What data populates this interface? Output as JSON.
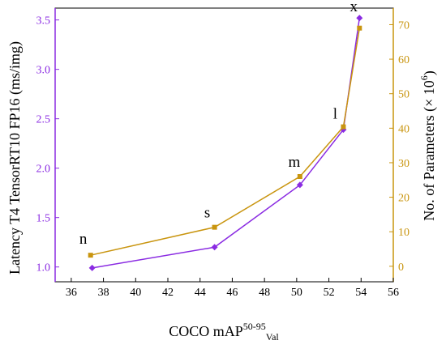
{
  "chart_data": {
    "type": "line",
    "title": "",
    "xlabel": {
      "base": "COCO mAP",
      "sup": "50-95",
      "sub": "Val"
    },
    "ylabel_left": "Latency T4 TensorRT10 FP16 (ms/img)",
    "ylabel_right": {
      "base": "No. of Parameters (× 10",
      "sup": "6",
      "end": ")"
    },
    "xlim": [
      35,
      56
    ],
    "ylim_left": [
      0.85,
      3.62
    ],
    "ylim_right": [
      -4.5,
      74.8
    ],
    "x_ticks": [
      36,
      38,
      40,
      42,
      44,
      46,
      48,
      50,
      52,
      54,
      56
    ],
    "y_left_ticks": [
      1.0,
      1.5,
      2.0,
      2.5,
      3.0,
      3.5
    ],
    "y_right_ticks": [
      0,
      10,
      20,
      30,
      40,
      50,
      60,
      70
    ],
    "grid": false,
    "point_labels": [
      "n",
      "s",
      "m",
      "l",
      "x"
    ],
    "series": [
      {
        "axis": "left",
        "color": "#8a2be2",
        "marker": "diamond",
        "x": [
          37.3,
          44.9,
          50.2,
          52.9,
          53.9
        ],
        "y": [
          0.99,
          1.2,
          1.83,
          2.39,
          3.52
        ]
      },
      {
        "axis": "right",
        "color": "#c9950f",
        "marker": "square",
        "x": [
          37.2,
          44.9,
          50.2,
          52.9,
          53.9
        ],
        "y": [
          3.2,
          11.3,
          26.0,
          40.4,
          69.0
        ]
      }
    ]
  }
}
